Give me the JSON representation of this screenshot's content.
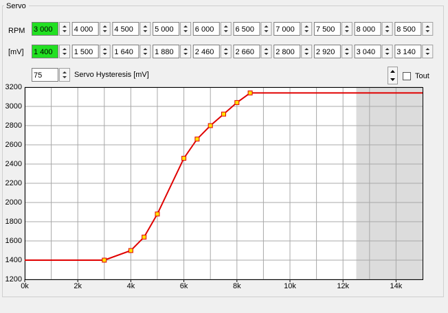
{
  "group_title": "Servo",
  "rpm_label": "RPM",
  "mv_label": "[mV]",
  "rpm_fields": [
    "3 000",
    "4 000",
    "4 500",
    "5 000",
    "6 000",
    "6 500",
    "7 000",
    "7 500",
    "8 000",
    "8 500"
  ],
  "mv_fields": [
    "1 400",
    "1 500",
    "1 640",
    "1 880",
    "2 460",
    "2 660",
    "2 800",
    "2 920",
    "3 040",
    "3 140"
  ],
  "hysteresis": {
    "value": "75",
    "label": "Servo Hysteresis [mV]"
  },
  "tout_label": "Tout",
  "chart_data": {
    "type": "line",
    "x": [
      3000,
      4000,
      4500,
      5000,
      6000,
      6500,
      7000,
      7500,
      8000,
      8500
    ],
    "series": [
      {
        "color": "#e00000",
        "values": [
          1400,
          1500,
          1640,
          1880,
          2460,
          2660,
          2800,
          2920,
          3040,
          3140
        ]
      }
    ],
    "xlim": [
      0,
      15000
    ],
    "xticks": [
      {
        "value": 0,
        "label": "0k"
      },
      {
        "value": 2000,
        "label": "2k"
      },
      {
        "value": 4000,
        "label": "4k"
      },
      {
        "value": 6000,
        "label": "6k"
      },
      {
        "value": 8000,
        "label": "8k"
      },
      {
        "value": 10000,
        "label": "10k"
      },
      {
        "value": 12000,
        "label": "12k"
      },
      {
        "value": 14000,
        "label": "14k"
      }
    ],
    "xminorticks": [
      1000,
      3000,
      5000,
      7000,
      9000,
      11000,
      13000
    ],
    "ylim": [
      1200,
      3200
    ],
    "yticks": [
      1200,
      1400,
      1600,
      1800,
      2000,
      2200,
      2400,
      2600,
      2800,
      3000,
      3200
    ],
    "shaded_xrange": [
      12500,
      15000
    ],
    "grid": true,
    "marker_color": "#ffe000"
  }
}
